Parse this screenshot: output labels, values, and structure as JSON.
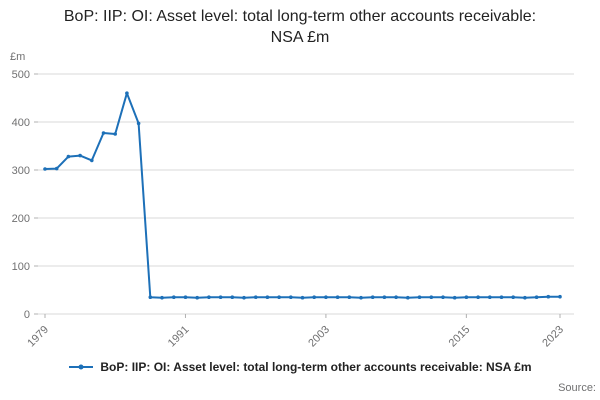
{
  "title": "BoP: IIP: OI: Asset level: total long-term other accounts receivable: NSA £m",
  "y_unit": "£m",
  "source_label": "Source:",
  "legend": {
    "label": "BoP: IIP: OI: Asset level: total long-term other accounts receivable: NSA £m"
  },
  "colors": {
    "line": "#1d70b8",
    "grid": "#d9d9d9",
    "tick_text": "#707071",
    "title_text": "#222222"
  },
  "chart_data": {
    "type": "line",
    "title": "BoP: IIP: OI: Asset level: total long-term other accounts receivable: NSA £m",
    "xlabel": "",
    "ylabel": "£m",
    "ylim": [
      0,
      500
    ],
    "xlim": [
      1979,
      2023
    ],
    "yticks": [
      0,
      100,
      200,
      300,
      400,
      500
    ],
    "xticks": [
      1979,
      1991,
      2003,
      2015,
      2023
    ],
    "grid": "horizontal",
    "legend_position": "bottom",
    "x": [
      1979,
      1980,
      1981,
      1982,
      1983,
      1984,
      1985,
      1986,
      1987,
      1988,
      1989,
      1990,
      1991,
      1992,
      1993,
      1994,
      1995,
      1996,
      1997,
      1998,
      1999,
      2000,
      2001,
      2002,
      2003,
      2004,
      2005,
      2006,
      2007,
      2008,
      2009,
      2010,
      2011,
      2012,
      2013,
      2014,
      2015,
      2016,
      2017,
      2018,
      2019,
      2020,
      2021,
      2022,
      2023
    ],
    "values": [
      302,
      303,
      328,
      330,
      320,
      377,
      375,
      460,
      397,
      35,
      34,
      35,
      35,
      34,
      35,
      35,
      35,
      34,
      35,
      35,
      35,
      35,
      34,
      35,
      35,
      35,
      35,
      34,
      35,
      35,
      35,
      34,
      35,
      35,
      35,
      34,
      35,
      35,
      35,
      35,
      35,
      34,
      35,
      36,
      36
    ]
  }
}
